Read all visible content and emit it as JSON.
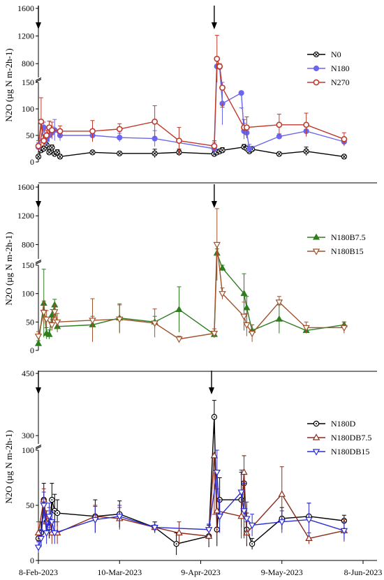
{
  "chart_data": [
    {
      "type": "line",
      "panel": "top",
      "ylabel": "N2O (µg N m-2h-1)",
      "broken_axis": true,
      "y_lower": [
        0,
        150
      ],
      "y_upper": [
        600,
        1600
      ],
      "yticks_lower": [
        "0",
        "50",
        "100",
        "150"
      ],
      "yticks_upper": [
        "800",
        "1200",
        "1600"
      ],
      "legend_position": "top-right",
      "arrows_at": [
        "2023-02-08",
        "2023-04-14"
      ],
      "series": [
        {
          "name": "N0",
          "color": "#000000",
          "marker": "circle-x",
          "points": [
            [
              "2023-02-08",
              10,
              3
            ],
            [
              "2023-02-09",
              22,
              5
            ],
            [
              "2023-02-10",
              25,
              5
            ],
            [
              "2023-02-11",
              32,
              8
            ],
            [
              "2023-02-12",
              18,
              5
            ],
            [
              "2023-02-13",
              27,
              5
            ],
            [
              "2023-02-14",
              15,
              4
            ],
            [
              "2023-02-15",
              18,
              5
            ],
            [
              "2023-02-16",
              10,
              4
            ],
            [
              "2023-02-28",
              18,
              3
            ],
            [
              "2023-03-10",
              16,
              3
            ],
            [
              "2023-03-23",
              16,
              8
            ],
            [
              "2023-04-01",
              18,
              6
            ],
            [
              "2023-04-14",
              15,
              5
            ],
            [
              "2023-04-15",
              18,
              5
            ],
            [
              "2023-04-16",
              20,
              4
            ],
            [
              "2023-04-17",
              22,
              5
            ],
            [
              "2023-04-25",
              28,
              5
            ],
            [
              "2023-04-26",
              25,
              5
            ],
            [
              "2023-04-27",
              20,
              4
            ],
            [
              "2023-04-28",
              24,
              5
            ],
            [
              "2023-05-08",
              15,
              3
            ],
            [
              "2023-05-18",
              20,
              8
            ],
            [
              "2023-06-01",
              10,
              3
            ]
          ]
        },
        {
          "name": "N180",
          "color": "#6b66f0",
          "marker": "filled-circle",
          "points": [
            [
              "2023-02-08",
              28,
              8
            ],
            [
              "2023-02-10",
              65,
              10
            ],
            [
              "2023-02-11",
              42,
              10
            ],
            [
              "2023-02-12",
              50,
              12
            ],
            [
              "2023-02-13",
              55,
              12
            ],
            [
              "2023-02-14",
              60,
              20
            ],
            [
              "2023-02-16",
              50,
              10
            ],
            [
              "2023-02-28",
              50,
              8
            ],
            [
              "2023-03-10",
              46,
              8
            ],
            [
              "2023-03-23",
              44,
              15
            ],
            [
              "2023-04-14",
              25,
              12
            ],
            [
              "2023-04-15",
              760,
              20
            ],
            [
              "2023-04-16",
              750,
              20
            ],
            [
              "2023-04-17",
              110,
              40
            ],
            [
              "2023-04-24",
              130,
              30
            ],
            [
              "2023-04-25",
              58,
              15
            ],
            [
              "2023-04-26",
              55,
              10
            ],
            [
              "2023-04-27",
              25,
              8
            ],
            [
              "2023-05-08",
              48,
              5
            ],
            [
              "2023-05-18",
              58,
              10
            ],
            [
              "2023-06-01",
              38,
              8
            ]
          ]
        },
        {
          "name": "N270",
          "color": "#c0392b",
          "marker": "open-circle",
          "points": [
            [
              "2023-02-08",
              30,
              10
            ],
            [
              "2023-02-09",
              76,
              45
            ],
            [
              "2023-02-10",
              40,
              10
            ],
            [
              "2023-02-11",
              50,
              10
            ],
            [
              "2023-02-12",
              65,
              12
            ],
            [
              "2023-02-13",
              60,
              15
            ],
            [
              "2023-02-16",
              58,
              10
            ],
            [
              "2023-02-28",
              58,
              20
            ],
            [
              "2023-03-10",
              62,
              10
            ],
            [
              "2023-03-23",
              76,
              30
            ],
            [
              "2023-04-01",
              40,
              25
            ],
            [
              "2023-04-14",
              30,
              10
            ],
            [
              "2023-04-15",
              870,
              340
            ],
            [
              "2023-04-16",
              760,
              40
            ],
            [
              "2023-04-17",
              140,
              30
            ],
            [
              "2023-04-25",
              65,
              15
            ],
            [
              "2023-04-26",
              65,
              20
            ],
            [
              "2023-05-08",
              70,
              20
            ],
            [
              "2023-05-18",
              70,
              22
            ],
            [
              "2023-06-01",
              43,
              12
            ]
          ]
        }
      ]
    },
    {
      "type": "line",
      "panel": "middle",
      "ylabel": "N2O (µg N m-2h-1)",
      "broken_axis": true,
      "y_lower": [
        0,
        150
      ],
      "y_upper": [
        600,
        1600
      ],
      "yticks_lower": [
        "0",
        "50",
        "100",
        "150"
      ],
      "yticks_upper": [
        "800",
        "1200",
        "1600"
      ],
      "legend_position": "right",
      "arrows_at": [
        "2023-02-08",
        "2023-04-14"
      ],
      "series": [
        {
          "name": "N180B7.5",
          "color": "#2e7d1f",
          "marker": "filled-triangle-up",
          "points": [
            [
              "2023-02-08",
              12,
              5
            ],
            [
              "2023-02-10",
              83,
              60
            ],
            [
              "2023-02-11",
              30,
              10
            ],
            [
              "2023-02-12",
              28,
              8
            ],
            [
              "2023-02-13",
              62,
              10
            ],
            [
              "2023-02-14",
              80,
              10
            ],
            [
              "2023-02-15",
              42,
              10
            ],
            [
              "2023-02-28",
              45,
              15
            ],
            [
              "2023-03-10",
              57,
              25
            ],
            [
              "2023-03-23",
              50,
              10
            ],
            [
              "2023-04-01",
              72,
              40
            ],
            [
              "2023-04-14",
              28,
              5
            ],
            [
              "2023-04-15",
              680,
              60
            ],
            [
              "2023-04-17",
              145,
              5
            ],
            [
              "2023-04-25",
              100,
              35
            ],
            [
              "2023-04-26",
              75,
              20
            ],
            [
              "2023-04-28",
              35,
              10
            ],
            [
              "2023-05-08",
              55,
              25
            ],
            [
              "2023-05-18",
              35,
              5
            ],
            [
              "2023-06-01",
              45,
              5
            ]
          ]
        },
        {
          "name": "N180B15",
          "color": "#a0522d",
          "marker": "open-triangle-down",
          "points": [
            [
              "2023-02-08",
              25,
              8
            ],
            [
              "2023-02-10",
              67,
              20
            ],
            [
              "2023-02-11",
              55,
              15
            ],
            [
              "2023-02-13",
              45,
              10
            ],
            [
              "2023-02-14",
              68,
              12
            ],
            [
              "2023-02-15",
              50,
              15
            ],
            [
              "2023-02-28",
              53,
              38
            ],
            [
              "2023-03-10",
              55,
              25
            ],
            [
              "2023-03-23",
              48,
              25
            ],
            [
              "2023-04-01",
              20,
              5
            ],
            [
              "2023-04-14",
              30,
              8
            ],
            [
              "2023-04-15",
              800,
              500
            ],
            [
              "2023-04-17",
              100,
              10
            ],
            [
              "2023-04-25",
              60,
              25
            ],
            [
              "2023-04-26",
              45,
              20
            ],
            [
              "2023-04-28",
              30,
              15
            ],
            [
              "2023-05-08",
              85,
              10
            ],
            [
              "2023-05-18",
              40,
              10
            ],
            [
              "2023-06-01",
              40,
              10
            ]
          ]
        }
      ]
    },
    {
      "type": "line",
      "panel": "bottom",
      "ylabel": "N2O (µg N m-2h-1)",
      "broken_axis": true,
      "y_lower": [
        0,
        100
      ],
      "y_upper": [
        280,
        450
      ],
      "yticks_lower": [
        "0",
        "50",
        "100"
      ],
      "yticks_upper": [
        "300",
        "450"
      ],
      "legend_position": "right",
      "arrows_at": [
        "2023-02-08",
        "2023-04-13"
      ],
      "xlim": [
        "2023-02-08",
        "2023-06-08"
      ],
      "xticks": [
        "8-Feb-2023",
        "10-Mar-2023",
        "9-Apr-2023",
        "9-May-2023",
        "8-Jun-2023"
      ],
      "series": [
        {
          "name": "N180D",
          "color": "#000000",
          "marker": "circle-dot",
          "points": [
            [
              "2023-02-08",
              20,
              5
            ],
            [
              "2023-02-09",
              25,
              10
            ],
            [
              "2023-02-10",
              55,
              15
            ],
            [
              "2023-02-11",
              35,
              10
            ],
            [
              "2023-02-12",
              30,
              10
            ],
            [
              "2023-02-13",
              55,
              15
            ],
            [
              "2023-02-14",
              45,
              15
            ],
            [
              "2023-02-15",
              43,
              12
            ],
            [
              "2023-03-01",
              40,
              15
            ],
            [
              "2023-03-10",
              42,
              12
            ],
            [
              "2023-03-23",
              30,
              5
            ],
            [
              "2023-03-31",
              15,
              10
            ],
            [
              "2023-04-12",
              22,
              10
            ],
            [
              "2023-04-14",
              345,
              40
            ],
            [
              "2023-04-15",
              28,
              15
            ],
            [
              "2023-04-16",
              55,
              20
            ],
            [
              "2023-04-24",
              55,
              25
            ],
            [
              "2023-04-25",
              70,
              25
            ],
            [
              "2023-04-26",
              28,
              15
            ],
            [
              "2023-04-28",
              15,
              5
            ],
            [
              "2023-05-09",
              38,
              10
            ],
            [
              "2023-05-19",
              40,
              12
            ],
            [
              "2023-06-01",
              36,
              5
            ]
          ]
        },
        {
          "name": "N180DB7.5",
          "color": "#8b2c1a",
          "marker": "open-triangle-up",
          "points": [
            [
              "2023-02-08",
              25,
              10
            ],
            [
              "2023-02-10",
              55,
              10
            ],
            [
              "2023-02-11",
              35,
              10
            ],
            [
              "2023-02-12",
              38,
              10
            ],
            [
              "2023-02-13",
              25,
              10
            ],
            [
              "2023-02-15",
              25,
              10
            ],
            [
              "2023-03-01",
              40,
              10
            ],
            [
              "2023-03-10",
              38,
              10
            ],
            [
              "2023-03-23",
              30,
              5
            ],
            [
              "2023-04-01",
              25,
              10
            ],
            [
              "2023-04-12",
              22,
              5
            ],
            [
              "2023-04-14",
              95,
              15
            ],
            [
              "2023-04-15",
              45,
              20
            ],
            [
              "2023-04-24",
              40,
              20
            ],
            [
              "2023-04-25",
              80,
              15
            ],
            [
              "2023-04-26",
              25,
              10
            ],
            [
              "2023-05-09",
              60,
              25
            ],
            [
              "2023-05-19",
              20,
              5
            ],
            [
              "2023-06-01",
              27,
              10
            ]
          ]
        },
        {
          "name": "N180DB15",
          "color": "#2b2bd6",
          "marker": "open-triangle-down",
          "points": [
            [
              "2023-02-08",
              12,
              5
            ],
            [
              "2023-02-09",
              20,
              8
            ],
            [
              "2023-02-10",
              50,
              12
            ],
            [
              "2023-02-11",
              25,
              10
            ],
            [
              "2023-02-12",
              40,
              12
            ],
            [
              "2023-02-13",
              35,
              10
            ],
            [
              "2023-02-14",
              25,
              10
            ],
            [
              "2023-03-01",
              37,
              12
            ],
            [
              "2023-03-10",
              40,
              10
            ],
            [
              "2023-03-23",
              30,
              5
            ],
            [
              "2023-04-12",
              28,
              5
            ],
            [
              "2023-04-15",
              80,
              20
            ],
            [
              "2023-04-16",
              40,
              15
            ],
            [
              "2023-04-24",
              62,
              20
            ],
            [
              "2023-04-25",
              45,
              25
            ],
            [
              "2023-04-26",
              38,
              15
            ],
            [
              "2023-04-28",
              32,
              10
            ],
            [
              "2023-05-09",
              35,
              10
            ],
            [
              "2023-05-19",
              37,
              15
            ],
            [
              "2023-06-01",
              27,
              8
            ]
          ]
        }
      ]
    }
  ]
}
